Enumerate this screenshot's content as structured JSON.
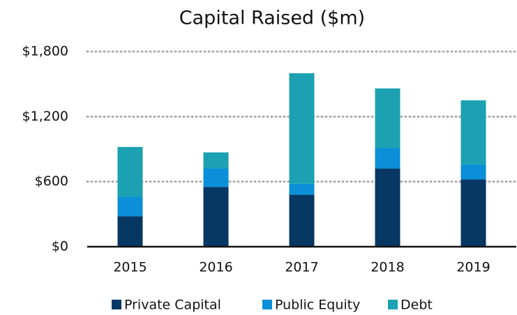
{
  "chart_data": {
    "type": "stacked_bar",
    "title": "Capital Raised ($m)",
    "categories": [
      "2015",
      "2016",
      "2017",
      "2018",
      "2019"
    ],
    "series": [
      {
        "name": "Private Capital",
        "color": "#073763",
        "values": [
          280,
          550,
          480,
          720,
          620
        ]
      },
      {
        "name": "Public Equity",
        "color": "#0a8fd8",
        "values": [
          180,
          170,
          100,
          190,
          140
        ]
      },
      {
        "name": "Debt",
        "color": "#1ba1b2",
        "values": [
          460,
          150,
          1020,
          550,
          590
        ]
      }
    ],
    "ylim": [
      0,
      1800
    ],
    "yticks": [
      {
        "value": 0,
        "label": "$0"
      },
      {
        "value": 600,
        "label": "$600"
      },
      {
        "value": 1200,
        "label": "$1,200"
      },
      {
        "value": 1800,
        "label": "$1,800"
      }
    ],
    "grid": true,
    "legend": "bottom"
  }
}
